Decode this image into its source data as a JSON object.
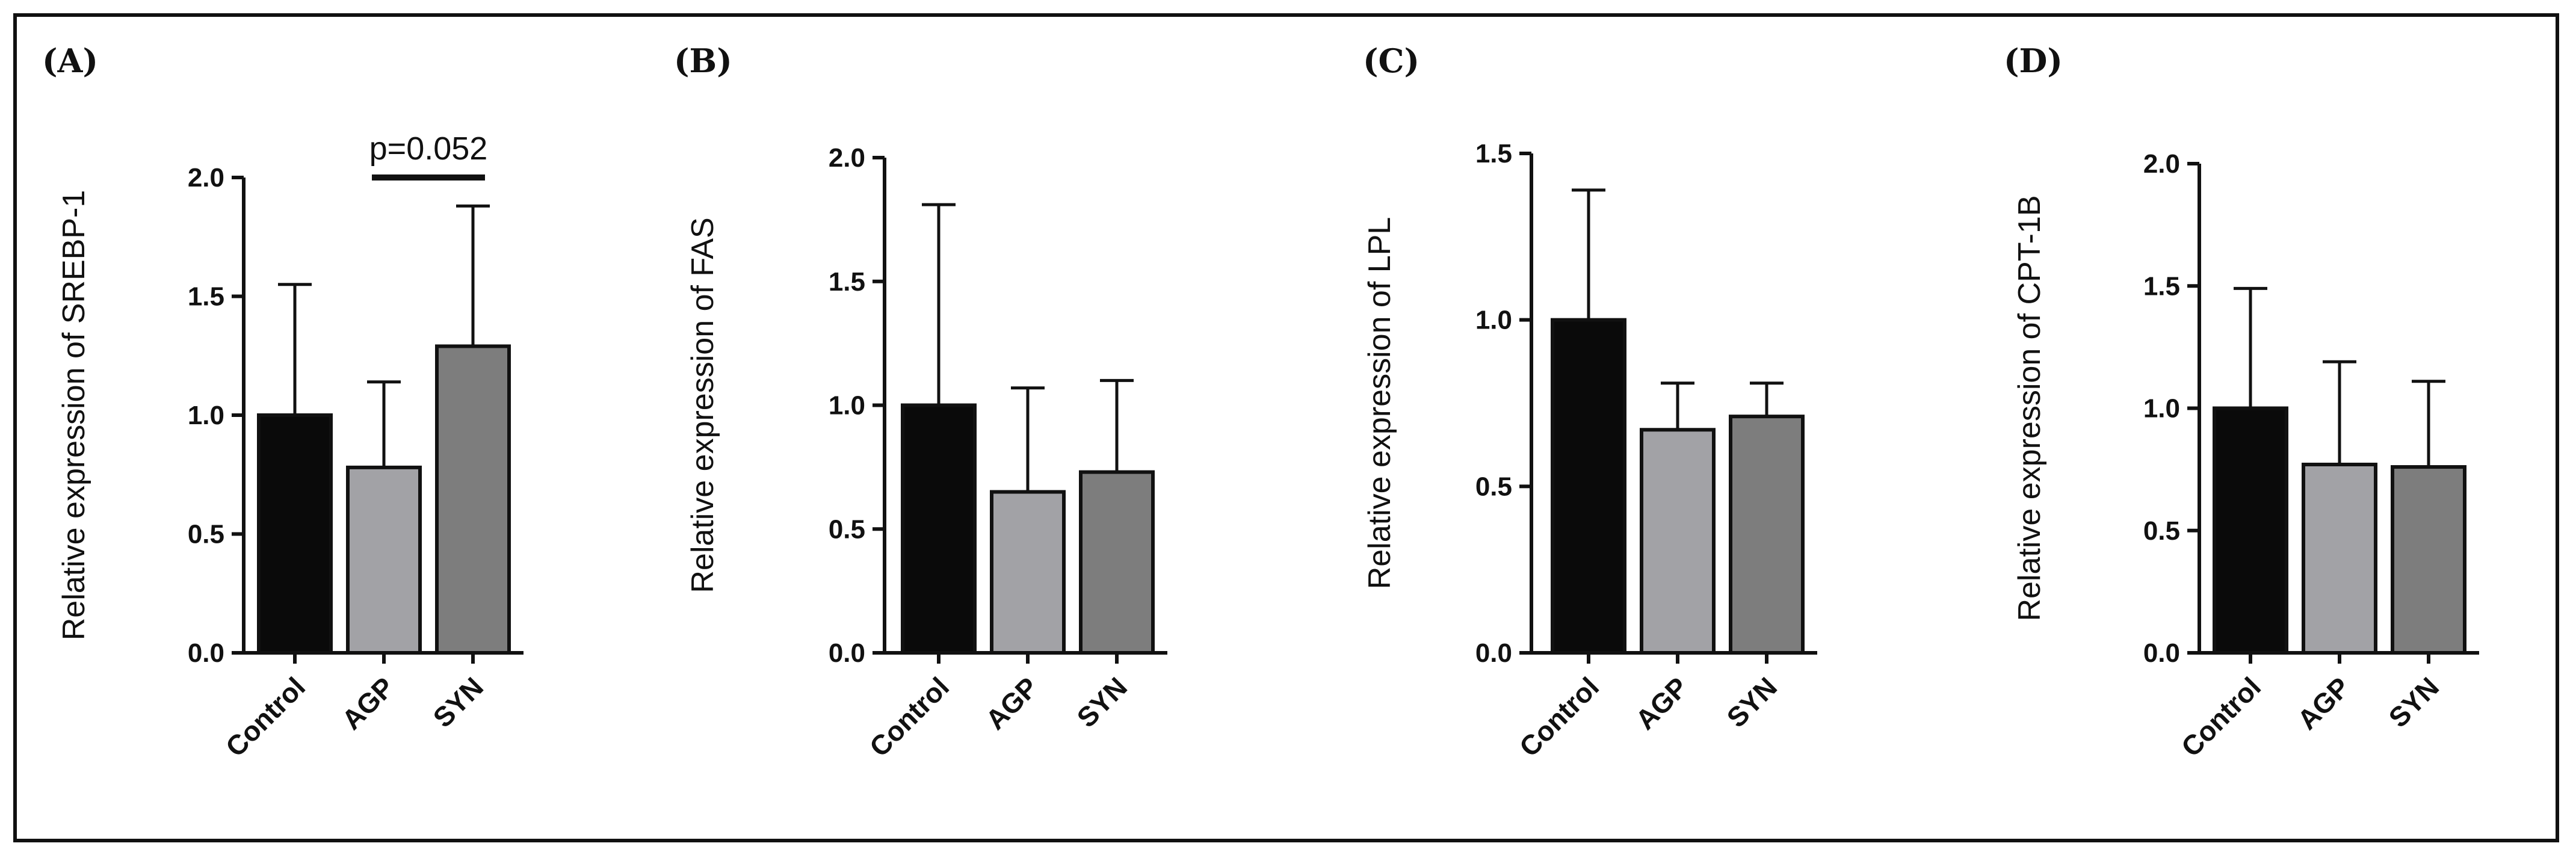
{
  "figure": {
    "colors": {
      "Control": "#0a0a0a",
      "AGP": "#a2a2a6",
      "SYN": "#7d7d7d",
      "axis": "#111111",
      "frame": "#111111"
    }
  },
  "chart_data": [
    {
      "panel": "(A)",
      "type": "bar",
      "categories": [
        "Control",
        "AGP",
        "SYN"
      ],
      "values": [
        1.0,
        0.78,
        1.29
      ],
      "error_upper": [
        1.55,
        1.14,
        1.88
      ],
      "ylabel": "Relative expression of SREBP-1",
      "ylim": [
        0,
        2.0
      ],
      "yticks": [
        0.0,
        0.5,
        1.0,
        1.5,
        2.0
      ],
      "tick_labels": [
        "0.0",
        "0.5",
        "1.0",
        "1.5",
        "2.0"
      ],
      "annotation": {
        "text": "p=0.052",
        "between": [
          "AGP",
          "SYN"
        ],
        "y": 2.0
      }
    },
    {
      "panel": "(B)",
      "type": "bar",
      "categories": [
        "Control",
        "AGP",
        "SYN"
      ],
      "values": [
        1.0,
        0.65,
        0.73
      ],
      "error_upper": [
        1.81,
        1.07,
        1.1
      ],
      "ylabel": "Relative expression of FAS",
      "ylim": [
        0,
        2.0
      ],
      "yticks": [
        0.0,
        0.5,
        1.0,
        1.5,
        2.0
      ],
      "tick_labels": [
        "0.0",
        "0.5",
        "1.0",
        "1.5",
        "2.0"
      ]
    },
    {
      "panel": "(C)",
      "type": "bar",
      "categories": [
        "Control",
        "AGP",
        "SYN"
      ],
      "values": [
        1.0,
        0.67,
        0.71
      ],
      "error_upper": [
        1.39,
        0.81,
        0.81
      ],
      "ylabel": "Relative expression of LPL",
      "ylim": [
        0,
        1.5
      ],
      "yticks": [
        0.0,
        0.5,
        1.0,
        1.5
      ],
      "tick_labels": [
        "0.0",
        "0.5",
        "1.0",
        "1.5"
      ]
    },
    {
      "panel": "(D)",
      "type": "bar",
      "categories": [
        "Control",
        "AGP",
        "SYN"
      ],
      "values": [
        1.0,
        0.77,
        0.76
      ],
      "error_upper": [
        1.49,
        1.19,
        1.11
      ],
      "ylabel": "Relative expression of CPT-1B",
      "ylim": [
        0,
        2.0
      ],
      "yticks": [
        0.0,
        0.5,
        1.0,
        1.5,
        2.0
      ],
      "tick_labels": [
        "0.0",
        "0.5",
        "1.0",
        "1.5",
        "2.0"
      ]
    }
  ]
}
